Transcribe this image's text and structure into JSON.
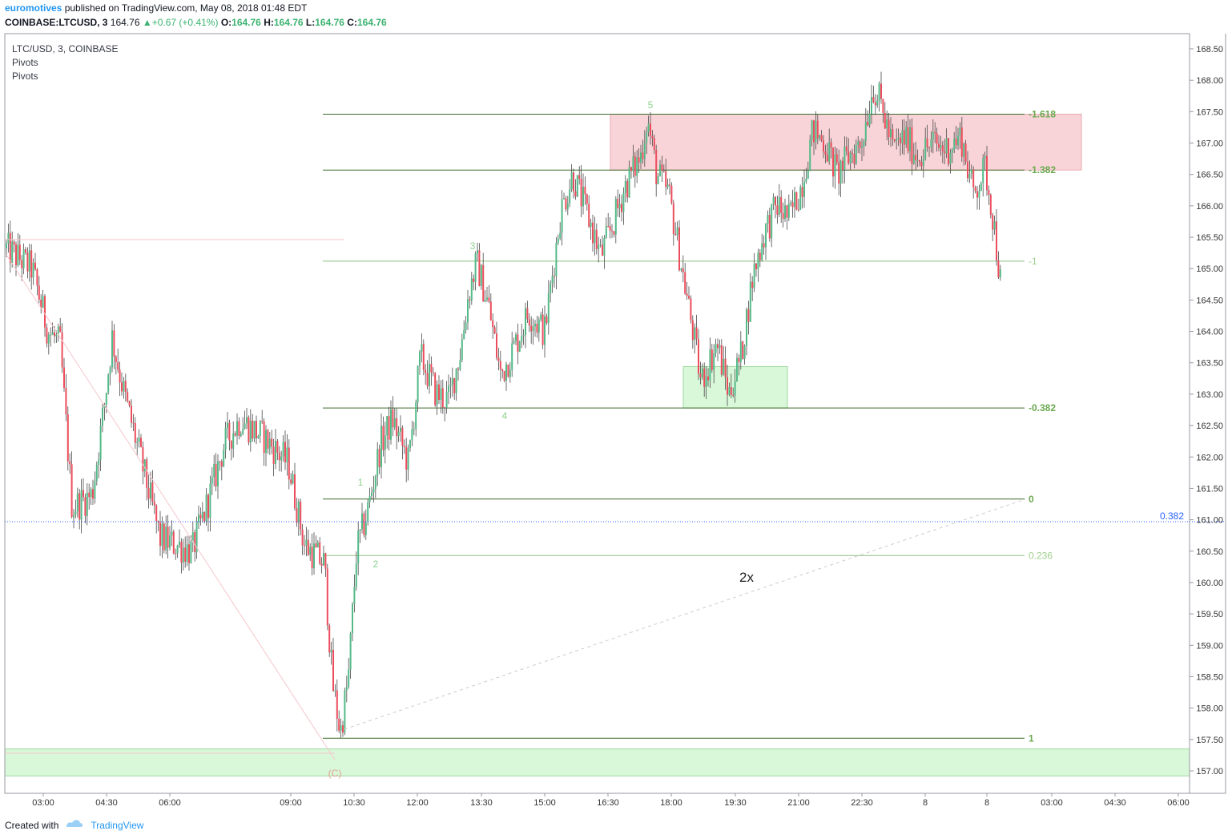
{
  "header": {
    "user": "euromotives",
    "published_text": "published on TradingView.com, May 08, 2018 01:48 EDT",
    "symbol_line": {
      "symbol": "COINBASE:LTCUSD, 3",
      "price": "164.76",
      "change": "+0.67 (+0.41%)",
      "o_label": "O:",
      "o": "164.76",
      "h_label": "H:",
      "h": "164.76",
      "l_label": "L:",
      "l": "164.76",
      "c_label": "C:",
      "c": "164.76"
    }
  },
  "legend": {
    "symbol": "LTC/USD, 3, COINBASE",
    "indicators": [
      "Pivots",
      "Pivots"
    ]
  },
  "footer": {
    "created_with": "Created with",
    "brand": "TradingView"
  },
  "colors": {
    "up": "#53b987",
    "down": "#eb4d5c",
    "fib_line": "#3e6b2a",
    "fib_label": "#6aa84f",
    "red_zone": "#f8d0d4",
    "green_zone": "#d9f8d9",
    "price_line": "#2962ff"
  },
  "chart_data": {
    "type": "candlestick",
    "ylim": [
      156.75,
      168.7
    ],
    "yticks": [
      "168.50",
      "168.00",
      "167.50",
      "167.00",
      "166.50",
      "166.00",
      "165.50",
      "165.00",
      "164.50",
      "164.00",
      "163.50",
      "163.00",
      "162.50",
      "162.00",
      "161.50",
      "161.00",
      "160.50",
      "160.00",
      "159.50",
      "159.00",
      "158.50",
      "158.00",
      "157.50",
      "157.00"
    ],
    "xticks": [
      "03:00",
      "04:30",
      "06:00",
      "09:00",
      "10:30",
      "12:00",
      "13:30",
      "15:00",
      "16:30",
      "18:00",
      "19:30",
      "21:00",
      "22:30",
      "8",
      "8",
      "03:00",
      "04:30",
      "06:00"
    ],
    "price_marker": {
      "label": "0.382",
      "value": 160.97
    },
    "fib_levels": [
      {
        "label": "-1.618",
        "value": 167.46
      },
      {
        "label": "-1.382",
        "value": 166.57
      },
      {
        "label": "-1",
        "value": 165.12
      },
      {
        "label": "-0.382",
        "value": 162.78
      },
      {
        "label": "0",
        "value": 161.33
      },
      {
        "label": "0.236",
        "value": 160.43
      },
      {
        "label": "1",
        "value": 157.52
      }
    ],
    "wave_labels": [
      "1",
      "2",
      "3",
      "4",
      "5",
      "(C)"
    ],
    "annotation": "2x",
    "zones": [
      {
        "name": "red",
        "y_range": [
          166.57,
          167.46
        ]
      },
      {
        "name": "green-small",
        "y_range": [
          162.78,
          163.44
        ]
      },
      {
        "name": "green-bottom",
        "y_range": [
          156.92,
          157.35
        ]
      }
    ],
    "path": [
      [
        0,
        165.4
      ],
      [
        40,
        165.0
      ],
      [
        60,
        164.0
      ],
      [
        75,
        163.8
      ],
      [
        90,
        161.2
      ],
      [
        115,
        161.4
      ],
      [
        130,
        162.8
      ],
      [
        140,
        163.9
      ],
      [
        155,
        163.0
      ],
      [
        175,
        162.0
      ],
      [
        200,
        160.7
      ],
      [
        240,
        160.5
      ],
      [
        260,
        161.3
      ],
      [
        280,
        162.2
      ],
      [
        300,
        162.6
      ],
      [
        330,
        162.3
      ],
      [
        360,
        161.9
      ],
      [
        380,
        160.6
      ],
      [
        405,
        160.3
      ],
      [
        415,
        158.4
      ],
      [
        425,
        157.6
      ],
      [
        435,
        158.5
      ],
      [
        445,
        160.5
      ],
      [
        460,
        161.2
      ],
      [
        475,
        162.2
      ],
      [
        490,
        162.6
      ],
      [
        510,
        161.9
      ],
      [
        525,
        163.6
      ],
      [
        545,
        163.0
      ],
      [
        560,
        162.9
      ],
      [
        575,
        163.7
      ],
      [
        585,
        164.6
      ],
      [
        595,
        165.1
      ],
      [
        610,
        164.4
      ],
      [
        625,
        163.3
      ],
      [
        640,
        163.7
      ],
      [
        660,
        164.3
      ],
      [
        680,
        164.0
      ],
      [
        700,
        165.9
      ],
      [
        715,
        166.5
      ],
      [
        735,
        165.8
      ],
      [
        750,
        165.2
      ],
      [
        765,
        165.7
      ],
      [
        780,
        166.3
      ],
      [
        800,
        166.8
      ],
      [
        808,
        167.4
      ],
      [
        820,
        166.5
      ],
      [
        835,
        166.2
      ],
      [
        850,
        165.1
      ],
      [
        865,
        164.0
      ],
      [
        875,
        163.2
      ],
      [
        885,
        163.5
      ],
      [
        895,
        163.8
      ],
      [
        910,
        163.0
      ],
      [
        925,
        163.6
      ],
      [
        940,
        164.9
      ],
      [
        955,
        165.6
      ],
      [
        970,
        166.0
      ],
      [
        985,
        165.8
      ],
      [
        1000,
        166.3
      ],
      [
        1015,
        167.2
      ],
      [
        1030,
        167.0
      ],
      [
        1045,
        166.5
      ],
      [
        1060,
        166.8
      ],
      [
        1075,
        167.0
      ],
      [
        1090,
        167.9
      ],
      [
        1100,
        167.6
      ],
      [
        1115,
        166.9
      ],
      [
        1130,
        167.1
      ],
      [
        1145,
        166.8
      ],
      [
        1165,
        167.0
      ],
      [
        1180,
        166.9
      ],
      [
        1200,
        167.1
      ],
      [
        1215,
        166.2
      ],
      [
        1230,
        166.6
      ],
      [
        1240,
        165.8
      ],
      [
        1249,
        164.76
      ]
    ]
  }
}
